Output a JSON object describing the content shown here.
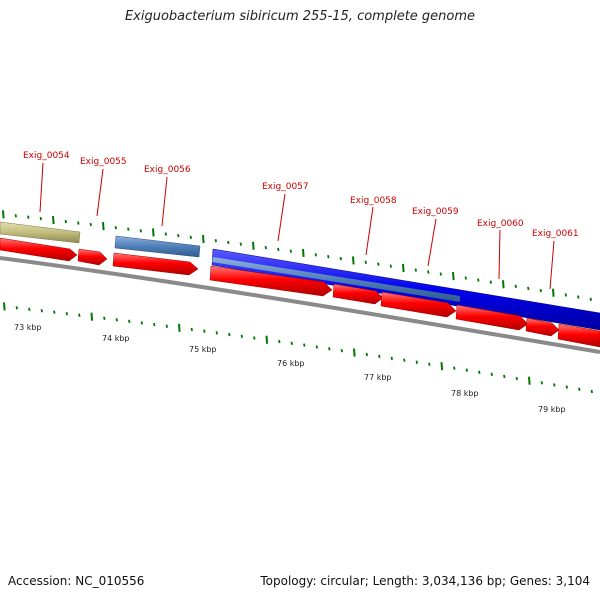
{
  "title": "Exiguobacterium sibiricum 255-15, complete genome",
  "footer": {
    "accession": "Accession: NC_010556",
    "summary": "Topology: circular; Length: 3,034,136 bp; Genes: 3,104"
  },
  "colors": {
    "cds": "#ff0000",
    "gene_blue": "#0000ee",
    "gene_steel": "#4f7fb8",
    "gene_olive": "#c2bd7c",
    "backbone": "#888888",
    "tick": "#007700",
    "label": "#cc0000"
  },
  "gene_labels": [
    "Exig_0054",
    "Exig_0055",
    "Exig_0056",
    "Exig_0057",
    "Exig_0058",
    "Exig_0059",
    "Exig_0060",
    "Exig_0061"
  ],
  "kbp_labels": [
    "73 kbp",
    "74 kbp",
    "75 kbp",
    "76 kbp",
    "77 kbp",
    "78 kbp",
    "79 kbp"
  ]
}
